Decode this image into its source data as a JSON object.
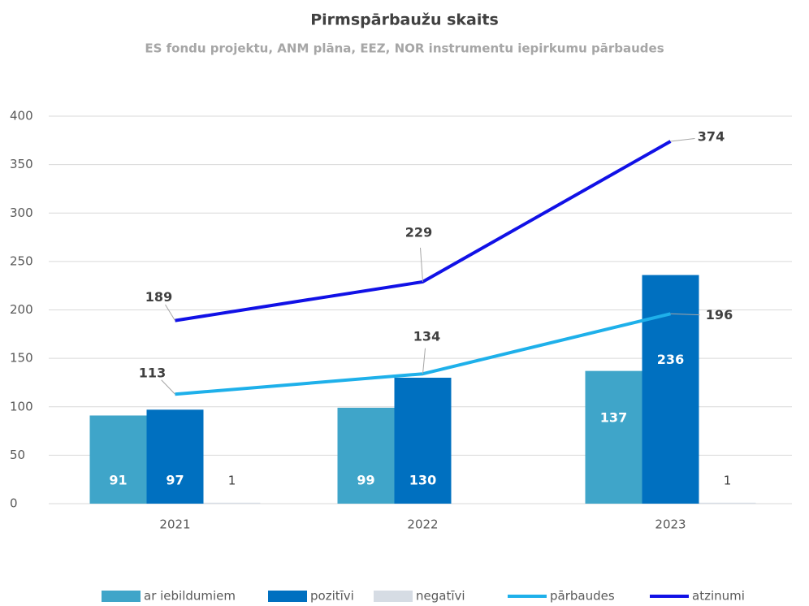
{
  "chart_data": {
    "type": "bar+line",
    "title": "Pirmspārbaužu skaits",
    "subtitle": "ES fondu projektu, ANM plāna, EEZ, NOR instrumentu iepirkumu pārbaudes",
    "categories": [
      "2021",
      "2022",
      "2023"
    ],
    "ylim": [
      0,
      400
    ],
    "yticks": [
      0,
      50,
      100,
      150,
      200,
      250,
      300,
      350,
      400
    ],
    "grid": true,
    "series": [
      {
        "name": "ar iebildumiem",
        "type": "bar",
        "color": "#3fa5c9",
        "values": [
          91,
          99,
          137
        ]
      },
      {
        "name": "pozitīvi",
        "type": "bar",
        "color": "#0070c0",
        "values": [
          97,
          130,
          236
        ]
      },
      {
        "name": "negatīvi",
        "type": "bar",
        "color": "#d6dce4",
        "values": [
          1,
          null,
          1
        ]
      },
      {
        "name": "pārbaudes",
        "type": "line",
        "color": "#1eb0ea",
        "values": [
          113,
          134,
          196
        ]
      },
      {
        "name": "atzinumi",
        "type": "line",
        "color": "#1111e6",
        "values": [
          189,
          229,
          374
        ]
      }
    ]
  }
}
